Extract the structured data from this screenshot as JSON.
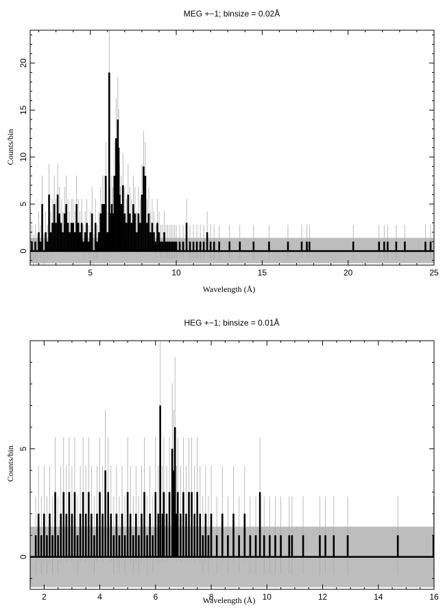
{
  "chart_data": [
    {
      "type": "line",
      "title": "MEG +−1; binsize = 0.02Å",
      "xlabel": "Wavelength (Å)",
      "ylabel": "Counts/bin",
      "xlim": [
        1.5,
        25
      ],
      "ylim": [
        -1.5,
        23.5
      ],
      "xticks": [
        5,
        10,
        15,
        20,
        25
      ],
      "yticks": [
        0,
        5,
        10,
        15,
        20
      ],
      "background_band": [
        -1.3,
        1.4
      ],
      "series": [
        {
          "x": [
            1.6,
            1.7,
            1.8,
            1.9,
            2.0,
            2.1,
            2.2,
            2.3,
            2.4,
            2.5,
            2.6,
            2.7,
            2.8,
            2.9,
            3.0,
            3.1,
            3.2,
            3.3,
            3.4,
            3.5,
            3.6,
            3.7,
            3.8,
            3.9,
            4.0,
            4.1,
            4.2,
            4.3,
            4.4,
            4.5,
            4.6,
            4.7,
            4.8,
            4.9,
            5.0,
            5.1,
            5.2,
            5.3,
            5.4,
            5.5,
            5.6,
            5.7,
            5.8,
            5.9,
            6.0,
            6.1,
            6.15,
            6.2,
            6.25,
            6.3,
            6.4,
            6.5,
            6.6,
            6.65,
            6.7,
            6.75,
            6.8,
            6.9,
            7.0,
            7.1,
            7.2,
            7.3,
            7.4,
            7.5,
            7.6,
            7.7,
            7.8,
            7.9,
            8.0,
            8.1,
            8.2,
            8.3,
            8.4,
            8.5,
            8.6,
            8.7,
            8.8,
            8.9,
            9.0,
            9.1,
            9.2,
            9.3,
            9.4,
            9.5,
            9.6,
            9.7,
            9.8,
            9.9,
            10.0,
            10.2,
            10.4,
            10.6,
            10.8,
            11.0,
            11.2,
            11.4,
            11.6,
            11.8,
            12.0,
            12.2,
            12.5,
            13.1,
            13.7,
            14.5,
            15.4,
            16.5,
            17.3,
            17.6,
            17.75,
            20.3,
            21.8,
            22.1,
            22.3,
            22.8,
            23.3,
            24.5,
            24.8
          ],
          "y": [
            1,
            0,
            1,
            0,
            2,
            1,
            5,
            0,
            2,
            1,
            6,
            2,
            3,
            5,
            3,
            6,
            4,
            3,
            2,
            4,
            5,
            3,
            2,
            3,
            3,
            2,
            5,
            3,
            2,
            3,
            1,
            2,
            3,
            1,
            2,
            4,
            0,
            3,
            1,
            2,
            4,
            5,
            5,
            8,
            2,
            19,
            4,
            2,
            5,
            4,
            8,
            12,
            14,
            11,
            6,
            4,
            5,
            7,
            4,
            3,
            6,
            4,
            3,
            5,
            4,
            2,
            4,
            3,
            6,
            9,
            8,
            3,
            4,
            2,
            3,
            2,
            1,
            3,
            2,
            1,
            1,
            2,
            1,
            1,
            1,
            1,
            1,
            1,
            1,
            1,
            1,
            3,
            1,
            1,
            1,
            1,
            1,
            2,
            1,
            1,
            1,
            1,
            1,
            1,
            1,
            1,
            1,
            1,
            1,
            1,
            1,
            1,
            1,
            1,
            1,
            1,
            1
          ]
        }
      ]
    },
    {
      "type": "line",
      "title": "HEG +−1; binsize = 0.01Å",
      "xlabel": "Wavelength (Å)",
      "ylabel": "Counts/bin",
      "xlim": [
        1.5,
        16
      ],
      "ylim": [
        -1.5,
        10
      ],
      "xticks": [
        2,
        4,
        6,
        8,
        10,
        12,
        14,
        16
      ],
      "yticks": [
        0,
        5
      ],
      "background_band": [
        -1.4,
        1.4
      ],
      "series": [
        {
          "x": [
            1.7,
            1.8,
            1.9,
            2.0,
            2.1,
            2.2,
            2.3,
            2.4,
            2.5,
            2.6,
            2.7,
            2.8,
            2.9,
            3.0,
            3.1,
            3.2,
            3.3,
            3.4,
            3.5,
            3.6,
            3.7,
            3.8,
            3.9,
            4.0,
            4.1,
            4.2,
            4.3,
            4.4,
            4.5,
            4.6,
            4.7,
            4.8,
            4.9,
            5.0,
            5.1,
            5.2,
            5.3,
            5.4,
            5.5,
            5.6,
            5.7,
            5.8,
            5.9,
            6.0,
            6.1,
            6.17,
            6.25,
            6.3,
            6.4,
            6.5,
            6.6,
            6.65,
            6.7,
            6.75,
            6.8,
            6.9,
            7.0,
            7.1,
            7.2,
            7.3,
            7.4,
            7.5,
            7.6,
            7.7,
            7.8,
            7.9,
            8.0,
            8.2,
            8.4,
            8.6,
            8.8,
            9.0,
            9.2,
            9.4,
            9.6,
            9.75,
            9.9,
            10.1,
            10.3,
            10.5,
            10.8,
            10.9,
            11.3,
            11.9,
            12.1,
            12.4,
            12.9,
            14.7,
            15.98
          ],
          "y": [
            1,
            2,
            1,
            2,
            1,
            2,
            1,
            3,
            1,
            2,
            3,
            2,
            3,
            2,
            3,
            1,
            2,
            3,
            2,
            3,
            2,
            1,
            2,
            3,
            2,
            4,
            3,
            2,
            1,
            2,
            1,
            2,
            1,
            3,
            2,
            1,
            2,
            1,
            2,
            3,
            1,
            2,
            1,
            3,
            2,
            7,
            2,
            3,
            2,
            3,
            5,
            4,
            6,
            2,
            3,
            2,
            3,
            2,
            3,
            3,
            2,
            3,
            2,
            1,
            2,
            1,
            2,
            1,
            2,
            1,
            2,
            1,
            2,
            1,
            1,
            3,
            1,
            1,
            1,
            1,
            1,
            1,
            1,
            1,
            1,
            1,
            1,
            1,
            1
          ]
        }
      ]
    }
  ]
}
